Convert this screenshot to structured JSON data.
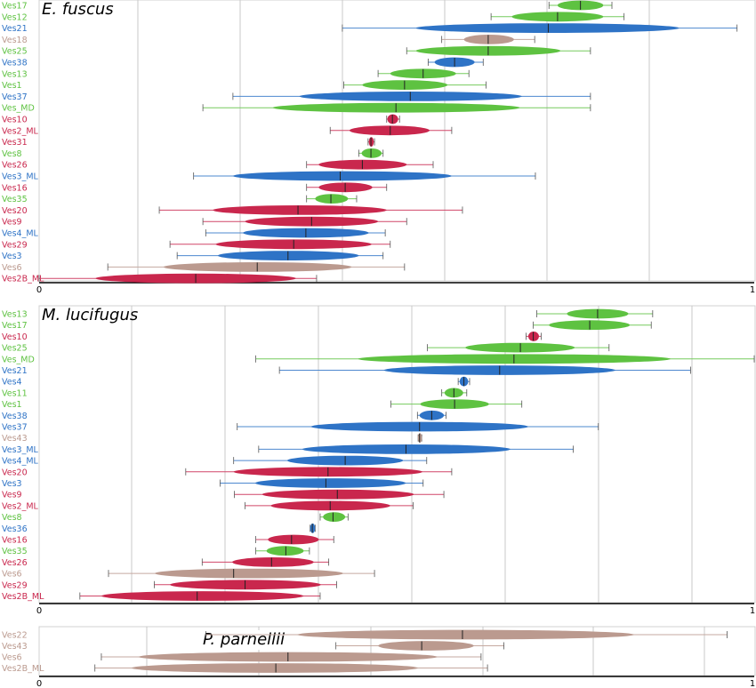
{
  "colors": {
    "red": "#c9274d",
    "green": "#5ec241",
    "blue": "#2e73c6",
    "tan": "#bb9a8f"
  },
  "chart_data": [
    {
      "type": "interval",
      "title": "E. fuscus",
      "xlim": [
        0,
        1
      ],
      "x_ticks": [
        "0",
        "1"
      ],
      "rows": [
        {
          "label": "Ves17",
          "color": "green",
          "mid": 0.757,
          "inner": [
            0.725,
            0.789
          ],
          "outer": [
            0.713,
            0.801
          ]
        },
        {
          "label": "Ves12",
          "color": "green",
          "mid": 0.725,
          "inner": [
            0.661,
            0.789
          ],
          "outer": [
            0.632,
            0.818
          ]
        },
        {
          "label": "Ves21",
          "color": "blue",
          "mid": 0.712,
          "inner": [
            0.527,
            0.895
          ],
          "outer": [
            0.424,
            0.976
          ]
        },
        {
          "label": "Ves18",
          "color": "tan",
          "mid": 0.628,
          "inner": [
            0.594,
            0.664
          ],
          "outer": [
            0.563,
            0.693
          ]
        },
        {
          "label": "Ves25",
          "color": "green",
          "mid": 0.628,
          "inner": [
            0.527,
            0.729
          ],
          "outer": [
            0.514,
            0.771
          ]
        },
        {
          "label": "Ves38",
          "color": "blue",
          "mid": 0.581,
          "inner": [
            0.553,
            0.609
          ],
          "outer": [
            0.544,
            0.621
          ]
        },
        {
          "label": "Ves13",
          "color": "green",
          "mid": 0.537,
          "inner": [
            0.491,
            0.583
          ],
          "outer": [
            0.474,
            0.601
          ]
        },
        {
          "label": "Ves1",
          "color": "green",
          "mid": 0.511,
          "inner": [
            0.452,
            0.571
          ],
          "outer": [
            0.426,
            0.625
          ]
        },
        {
          "label": "Ves37",
          "color": "blue",
          "mid": 0.519,
          "inner": [
            0.364,
            0.675
          ],
          "outer": [
            0.271,
            0.771
          ]
        },
        {
          "label": "Ves_MD",
          "color": "green",
          "mid": 0.499,
          "inner": [
            0.327,
            0.672
          ],
          "outer": [
            0.229,
            0.771
          ]
        },
        {
          "label": "Ves10",
          "color": "red",
          "mid": 0.494,
          "inner": [
            0.487,
            0.502
          ],
          "outer": [
            0.486,
            0.504
          ]
        },
        {
          "label": "Ves2_ML",
          "color": "red",
          "mid": 0.491,
          "inner": [
            0.434,
            0.546
          ],
          "outer": [
            0.407,
            0.577
          ]
        },
        {
          "label": "Ves31",
          "color": "red",
          "mid": 0.464,
          "inner": [
            0.461,
            0.468
          ],
          "outer": [
            0.46,
            0.469
          ]
        },
        {
          "label": "Ves8",
          "color": "green",
          "mid": 0.464,
          "inner": [
            0.451,
            0.479
          ],
          "outer": [
            0.447,
            0.481
          ]
        },
        {
          "label": "Ves26",
          "color": "red",
          "mid": 0.452,
          "inner": [
            0.391,
            0.514
          ],
          "outer": [
            0.374,
            0.551
          ]
        },
        {
          "label": "Ves3_ML",
          "color": "blue",
          "mid": 0.421,
          "inner": [
            0.271,
            0.577
          ],
          "outer": [
            0.216,
            0.694
          ]
        },
        {
          "label": "Ves16",
          "color": "red",
          "mid": 0.428,
          "inner": [
            0.391,
            0.466
          ],
          "outer": [
            0.374,
            0.486
          ]
        },
        {
          "label": "Ves35",
          "color": "green",
          "mid": 0.408,
          "inner": [
            0.386,
            0.432
          ],
          "outer": [
            0.374,
            0.444
          ]
        },
        {
          "label": "Ves20",
          "color": "red",
          "mid": 0.362,
          "inner": [
            0.243,
            0.486
          ],
          "outer": [
            0.168,
            0.592
          ]
        },
        {
          "label": "Ves9",
          "color": "red",
          "mid": 0.381,
          "inner": [
            0.288,
            0.474
          ],
          "outer": [
            0.229,
            0.514
          ]
        },
        {
          "label": "Ves4_ML",
          "color": "blue",
          "mid": 0.373,
          "inner": [
            0.285,
            0.461
          ],
          "outer": [
            0.233,
            0.484
          ]
        },
        {
          "label": "Ves29",
          "color": "red",
          "mid": 0.356,
          "inner": [
            0.247,
            0.465
          ],
          "outer": [
            0.183,
            0.491
          ]
        },
        {
          "label": "Ves3",
          "color": "blue",
          "mid": 0.348,
          "inner": [
            0.25,
            0.447
          ],
          "outer": [
            0.193,
            0.481
          ]
        },
        {
          "label": "Ves6",
          "color": "tan",
          "mid": 0.305,
          "inner": [
            0.174,
            0.437
          ],
          "outer": [
            0.096,
            0.511
          ]
        },
        {
          "label": "Ves2B_ML",
          "color": "red",
          "mid": 0.219,
          "inner": [
            0.079,
            0.359
          ],
          "outer": [
            0.0,
            0.388
          ]
        }
      ]
    },
    {
      "type": "interval",
      "title": "M. lucifugus",
      "xlim": [
        0,
        1
      ],
      "x_ticks": [
        "0",
        "1"
      ],
      "rows": [
        {
          "label": "Ves13",
          "color": "green",
          "mid": 0.781,
          "inner": [
            0.738,
            0.824
          ],
          "outer": [
            0.696,
            0.858
          ]
        },
        {
          "label": "Ves17",
          "color": "green",
          "mid": 0.77,
          "inner": [
            0.713,
            0.826
          ],
          "outer": [
            0.691,
            0.856
          ]
        },
        {
          "label": "Ves10",
          "color": "red",
          "mid": 0.691,
          "inner": [
            0.684,
            0.699
          ],
          "outer": [
            0.681,
            0.702
          ]
        },
        {
          "label": "Ves25",
          "color": "green",
          "mid": 0.673,
          "inner": [
            0.596,
            0.749
          ],
          "outer": [
            0.543,
            0.797
          ]
        },
        {
          "label": "Ves_MD",
          "color": "green",
          "mid": 0.664,
          "inner": [
            0.446,
            0.883
          ],
          "outer": [
            0.303,
            1.0
          ]
        },
        {
          "label": "Ves21",
          "color": "blue",
          "mid": 0.644,
          "inner": [
            0.482,
            0.806
          ],
          "outer": [
            0.336,
            0.911
          ]
        },
        {
          "label": "Ves4",
          "color": "blue",
          "mid": 0.594,
          "inner": [
            0.588,
            0.6
          ],
          "outer": [
            0.586,
            0.602
          ]
        },
        {
          "label": "Ves11",
          "color": "green",
          "mid": 0.58,
          "inner": [
            0.567,
            0.593
          ],
          "outer": [
            0.563,
            0.598
          ]
        },
        {
          "label": "Ves1",
          "color": "green",
          "mid": 0.581,
          "inner": [
            0.533,
            0.629
          ],
          "outer": [
            0.492,
            0.675
          ]
        },
        {
          "label": "Ves38",
          "color": "blue",
          "mid": 0.549,
          "inner": [
            0.532,
            0.566
          ],
          "outer": [
            0.529,
            0.569
          ]
        },
        {
          "label": "Ves37",
          "color": "blue",
          "mid": 0.532,
          "inner": [
            0.38,
            0.684
          ],
          "outer": [
            0.277,
            0.782
          ]
        },
        {
          "label": "Ves43",
          "color": "tan",
          "mid": 0.532,
          "inner": [
            0.53,
            0.535
          ],
          "outer": [
            0.53,
            0.535
          ]
        },
        {
          "label": "Ves3_ML",
          "color": "blue",
          "mid": 0.513,
          "inner": [
            0.368,
            0.659
          ],
          "outer": [
            0.307,
            0.747
          ]
        },
        {
          "label": "Ves4_ML",
          "color": "blue",
          "mid": 0.428,
          "inner": [
            0.347,
            0.509
          ],
          "outer": [
            0.272,
            0.542
          ]
        },
        {
          "label": "Ves20",
          "color": "red",
          "mid": 0.404,
          "inner": [
            0.272,
            0.536
          ],
          "outer": [
            0.205,
            0.577
          ]
        },
        {
          "label": "Ves3",
          "color": "blue",
          "mid": 0.401,
          "inner": [
            0.302,
            0.513
          ],
          "outer": [
            0.253,
            0.537
          ]
        },
        {
          "label": "Ves9",
          "color": "red",
          "mid": 0.417,
          "inner": [
            0.312,
            0.524
          ],
          "outer": [
            0.273,
            0.566
          ]
        },
        {
          "label": "Ves2_ML",
          "color": "red",
          "mid": 0.407,
          "inner": [
            0.324,
            0.491
          ],
          "outer": [
            0.288,
            0.523
          ]
        },
        {
          "label": "Ves8",
          "color": "green",
          "mid": 0.411,
          "inner": [
            0.397,
            0.428
          ],
          "outer": [
            0.393,
            0.432
          ]
        },
        {
          "label": "Ves36",
          "color": "blue",
          "mid": 0.382,
          "inner": [
            0.379,
            0.386
          ],
          "outer": [
            0.379,
            0.386
          ]
        },
        {
          "label": "Ves16",
          "color": "red",
          "mid": 0.353,
          "inner": [
            0.32,
            0.391
          ],
          "outer": [
            0.303,
            0.412
          ]
        },
        {
          "label": "Ves35",
          "color": "green",
          "mid": 0.345,
          "inner": [
            0.318,
            0.37
          ],
          "outer": [
            0.303,
            0.378
          ]
        },
        {
          "label": "Ves26",
          "color": "red",
          "mid": 0.325,
          "inner": [
            0.27,
            0.384
          ],
          "outer": [
            0.228,
            0.405
          ]
        },
        {
          "label": "Ves6",
          "color": "tan",
          "mid": 0.272,
          "inner": [
            0.162,
            0.425
          ],
          "outer": [
            0.097,
            0.469
          ]
        },
        {
          "label": "Ves29",
          "color": "red",
          "mid": 0.288,
          "inner": [
            0.183,
            0.394
          ],
          "outer": [
            0.161,
            0.416
          ]
        },
        {
          "label": "Ves2B_ML",
          "color": "red",
          "mid": 0.221,
          "inner": [
            0.087,
            0.37
          ],
          "outer": [
            0.057,
            0.393
          ]
        }
      ]
    },
    {
      "type": "interval",
      "title": "P. parnellii",
      "xlim": [
        0,
        1
      ],
      "x_ticks": [
        "0",
        "1"
      ],
      "rows": [
        {
          "label": "Ves22",
          "color": "tan",
          "mid": 0.592,
          "inner": [
            0.361,
            0.832
          ],
          "outer": [
            0.233,
            0.962
          ]
        },
        {
          "label": "Ves43",
          "color": "tan",
          "mid": 0.535,
          "inner": [
            0.474,
            0.608
          ],
          "outer": [
            0.415,
            0.65
          ]
        },
        {
          "label": "Ves6",
          "color": "tan",
          "mid": 0.348,
          "inner": [
            0.139,
            0.557
          ],
          "outer": [
            0.087,
            0.618
          ]
        },
        {
          "label": "Ves2B_ML",
          "color": "tan",
          "mid": 0.331,
          "inner": [
            0.129,
            0.53
          ],
          "outer": [
            0.078,
            0.627
          ]
        }
      ]
    }
  ]
}
